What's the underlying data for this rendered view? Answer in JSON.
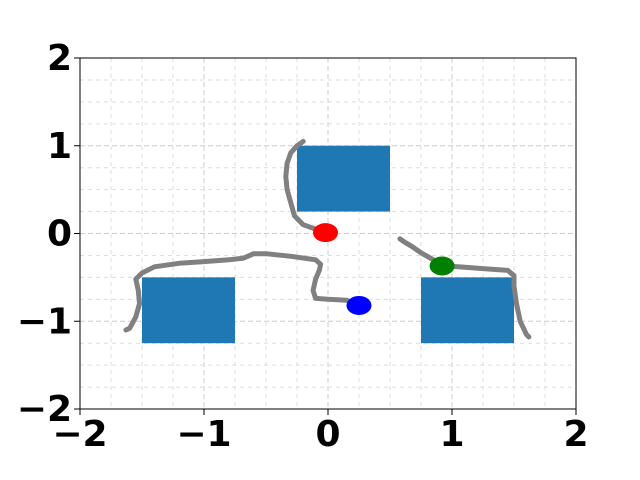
{
  "chart_data": {
    "type": "scatter",
    "title": "",
    "xlabel": "",
    "ylabel": "",
    "xlim": [
      -2,
      2
    ],
    "ylim": [
      -2,
      2
    ],
    "grid": "on (major and minor, dashed)",
    "x_ticks": [
      {
        "value": -2,
        "label": "−2"
      },
      {
        "value": -1,
        "label": "−1"
      },
      {
        "value": 0,
        "label": "0"
      },
      {
        "value": 1,
        "label": "1"
      },
      {
        "value": 2,
        "label": "2"
      }
    ],
    "y_ticks": [
      {
        "value": -2,
        "label": "−2"
      },
      {
        "value": -1,
        "label": "−1"
      },
      {
        "value": 0,
        "label": "0"
      },
      {
        "value": 1,
        "label": "1"
      },
      {
        "value": 2,
        "label": "2"
      }
    ],
    "minor_step": 0.25,
    "obstacles": [
      {
        "name": "top",
        "x": [
          -0.25,
          0.5
        ],
        "y": [
          0.25,
          1.0
        ]
      },
      {
        "name": "left",
        "x": [
          -1.5,
          -0.75
        ],
        "y": [
          -1.25,
          -0.5
        ]
      },
      {
        "name": "right",
        "x": [
          0.75,
          1.5
        ],
        "y": [
          -1.25,
          -0.5
        ]
      }
    ],
    "obstacle_color": "#1f77b4",
    "trajectory_color": "#808080",
    "agents": [
      {
        "name": "red",
        "color": "#ff0000",
        "x": -0.02,
        "y": 0.01
      },
      {
        "name": "green",
        "color": "#008000",
        "x": 0.92,
        "y": -0.37
      },
      {
        "name": "blue",
        "color": "#0000ff",
        "x": 0.25,
        "y": -0.82
      }
    ],
    "trajectories": [
      {
        "name": "path-red",
        "points": [
          [
            -0.02,
            0.01
          ],
          [
            -0.1,
            0.05
          ],
          [
            -0.2,
            0.1
          ],
          [
            -0.27,
            0.2
          ],
          [
            -0.3,
            0.35
          ],
          [
            -0.33,
            0.5
          ],
          [
            -0.34,
            0.65
          ],
          [
            -0.33,
            0.8
          ],
          [
            -0.3,
            0.92
          ],
          [
            -0.25,
            1.0
          ],
          [
            -0.2,
            1.05
          ]
        ]
      },
      {
        "name": "path-blue",
        "points": [
          [
            0.25,
            -0.82
          ],
          [
            0.15,
            -0.76
          ],
          [
            0.0,
            -0.75
          ],
          [
            -0.1,
            -0.74
          ],
          [
            -0.12,
            -0.65
          ],
          [
            -0.1,
            -0.52
          ],
          [
            -0.07,
            -0.42
          ],
          [
            -0.06,
            -0.35
          ],
          [
            -0.1,
            -0.3
          ],
          [
            -0.3,
            -0.26
          ],
          [
            -0.5,
            -0.23
          ],
          [
            -0.6,
            -0.23
          ],
          [
            -0.68,
            -0.28
          ],
          [
            -0.8,
            -0.3
          ],
          [
            -1.0,
            -0.32
          ],
          [
            -1.2,
            -0.34
          ],
          [
            -1.4,
            -0.38
          ],
          [
            -1.5,
            -0.45
          ],
          [
            -1.55,
            -0.52
          ],
          [
            -1.53,
            -0.65
          ],
          [
            -1.52,
            -0.8
          ],
          [
            -1.55,
            -0.95
          ],
          [
            -1.6,
            -1.08
          ],
          [
            -1.63,
            -1.1
          ]
        ]
      },
      {
        "name": "path-green",
        "points": [
          [
            0.58,
            -0.06
          ],
          [
            0.62,
            -0.1
          ],
          [
            0.68,
            -0.15
          ],
          [
            0.75,
            -0.22
          ],
          [
            0.85,
            -0.3
          ],
          [
            0.92,
            -0.37
          ],
          [
            1.05,
            -0.38
          ],
          [
            1.25,
            -0.4
          ],
          [
            1.45,
            -0.42
          ],
          [
            1.5,
            -0.48
          ],
          [
            1.5,
            -0.6
          ],
          [
            1.52,
            -0.8
          ],
          [
            1.55,
            -1.0
          ],
          [
            1.6,
            -1.15
          ],
          [
            1.62,
            -1.18
          ]
        ]
      }
    ]
  }
}
